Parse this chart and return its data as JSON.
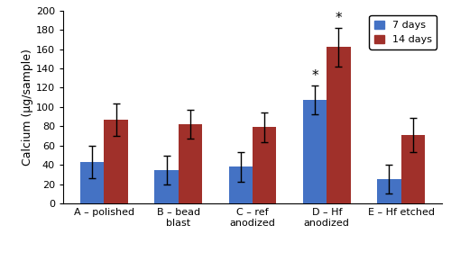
{
  "categories": [
    "A – polished",
    "B – bead\nblast",
    "C – ref\nanodized",
    "D – Hf\nanodized",
    "E – Hf etched"
  ],
  "values_7days": [
    43,
    35,
    38,
    107,
    25
  ],
  "values_14days": [
    87,
    82,
    79,
    162,
    71
  ],
  "errors_7days": [
    17,
    15,
    15,
    15,
    15
  ],
  "errors_14days": [
    17,
    15,
    15,
    20,
    18
  ],
  "color_7days": "#4472C4",
  "color_14days": "#A0302A",
  "ylabel": "Calcium (µg/sample)",
  "ylim": [
    0,
    200
  ],
  "yticks": [
    0,
    20,
    40,
    60,
    80,
    100,
    120,
    140,
    160,
    180,
    200
  ],
  "legend_7days": "7 days",
  "legend_14days": "14 days",
  "bar_width": 0.32,
  "figsize": [
    5.0,
    2.9
  ],
  "dpi": 100
}
